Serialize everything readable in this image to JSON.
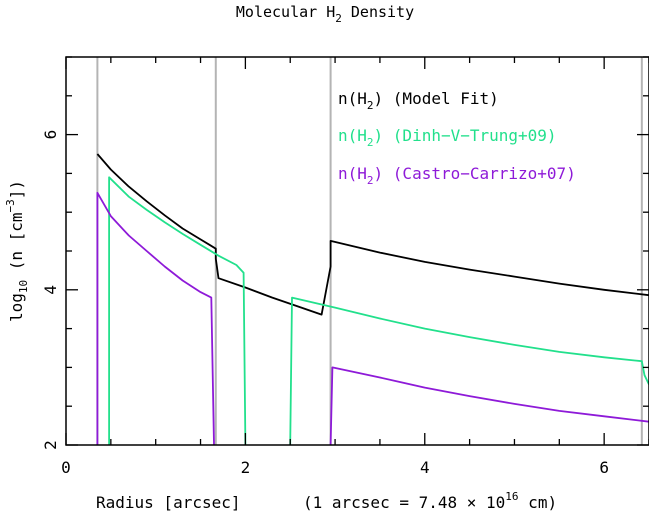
{
  "chart_data": {
    "type": "line",
    "title": "Molecular H",
    "title_sub": "2",
    "title_tail": " Density",
    "xlabel": "Radius [arcsec]",
    "xlabel_note": "(1 arcsec = 7.48 × 10",
    "xlabel_note_exp": "16",
    "xlabel_note_tail": " cm)",
    "ylabel_pre": "log",
    "ylabel_sub": "10",
    "ylabel_mid": " (n [cm",
    "ylabel_exp": "−3",
    "ylabel_tail": "])",
    "xlim": [
      0,
      6.5
    ],
    "ylim": [
      2,
      7
    ],
    "xticks": [
      0,
      2,
      4,
      6
    ],
    "yticks": [
      2,
      4,
      6
    ],
    "vlines": [
      0.35,
      1.67,
      2.95,
      6.42
    ],
    "grid": false,
    "legend_position": "top-right",
    "series": [
      {
        "name": "n(H2) (Model Fit)",
        "label_pre": "n(H",
        "label_sub": "2",
        "label_post": ")  (Model Fit)",
        "color": "#000000",
        "segments": [
          [
            [
              0.35,
              5.75
            ],
            [
              0.5,
              5.55
            ],
            [
              0.7,
              5.33
            ],
            [
              0.9,
              5.14
            ],
            [
              1.1,
              4.96
            ],
            [
              1.3,
              4.79
            ],
            [
              1.5,
              4.65
            ],
            [
              1.6,
              4.58
            ],
            [
              1.67,
              4.53
            ],
            [
              1.67,
              4.4
            ],
            [
              1.7,
              4.15
            ],
            [
              2.0,
              4.03
            ],
            [
              2.3,
              3.9
            ],
            [
              2.6,
              3.78
            ],
            [
              2.85,
              3.68
            ],
            [
              2.95,
              4.3
            ],
            [
              2.95,
              4.63
            ],
            [
              3.5,
              4.48
            ],
            [
              4.0,
              4.36
            ],
            [
              4.5,
              4.26
            ],
            [
              5.0,
              4.17
            ],
            [
              5.5,
              4.08
            ],
            [
              6.0,
              4.0
            ],
            [
              6.5,
              3.93
            ]
          ]
        ]
      },
      {
        "name": "n(H2) (Dinh-V-Trung+09)",
        "label_pre": "n(H",
        "label_sub": "2",
        "label_post": ")  (Dinh−V−Trung+09)",
        "color": "#22e08c",
        "segments": [
          [
            [
              0.48,
              2.0
            ],
            [
              0.48,
              5.45
            ],
            [
              0.7,
              5.2
            ],
            [
              0.9,
              5.03
            ],
            [
              1.1,
              4.87
            ],
            [
              1.3,
              4.72
            ],
            [
              1.5,
              4.58
            ],
            [
              1.7,
              4.44
            ],
            [
              1.9,
              4.32
            ],
            [
              1.98,
              4.22
            ],
            [
              2.0,
              2.0
            ]
          ],
          [
            [
              2.5,
              2.0
            ],
            [
              2.52,
              3.9
            ],
            [
              3.0,
              3.77
            ],
            [
              3.5,
              3.63
            ],
            [
              4.0,
              3.5
            ],
            [
              4.5,
              3.39
            ],
            [
              5.0,
              3.29
            ],
            [
              5.5,
              3.2
            ],
            [
              6.0,
              3.13
            ],
            [
              6.42,
              3.08
            ],
            [
              6.45,
              2.9
            ],
            [
              6.5,
              2.78
            ]
          ]
        ]
      },
      {
        "name": "n(H2) (Castro-Carrizo+07)",
        "label_pre": "n(H",
        "label_sub": "2",
        "label_post": ")  (Castro−Carrizo+07)",
        "color": "#8e1ad8",
        "segments": [
          [
            [
              0.35,
              2.0
            ],
            [
              0.35,
              5.25
            ],
            [
              0.5,
              4.95
            ],
            [
              0.7,
              4.7
            ],
            [
              0.9,
              4.5
            ],
            [
              1.1,
              4.3
            ],
            [
              1.3,
              4.12
            ],
            [
              1.5,
              3.97
            ],
            [
              1.62,
              3.9
            ],
            [
              1.65,
              2.0
            ]
          ],
          [
            [
              2.95,
              2.0
            ],
            [
              2.97,
              3.0
            ],
            [
              3.5,
              2.87
            ],
            [
              4.0,
              2.74
            ],
            [
              4.5,
              2.63
            ],
            [
              5.0,
              2.53
            ],
            [
              5.5,
              2.44
            ],
            [
              6.0,
              2.37
            ],
            [
              6.5,
              2.3
            ]
          ]
        ]
      }
    ]
  }
}
